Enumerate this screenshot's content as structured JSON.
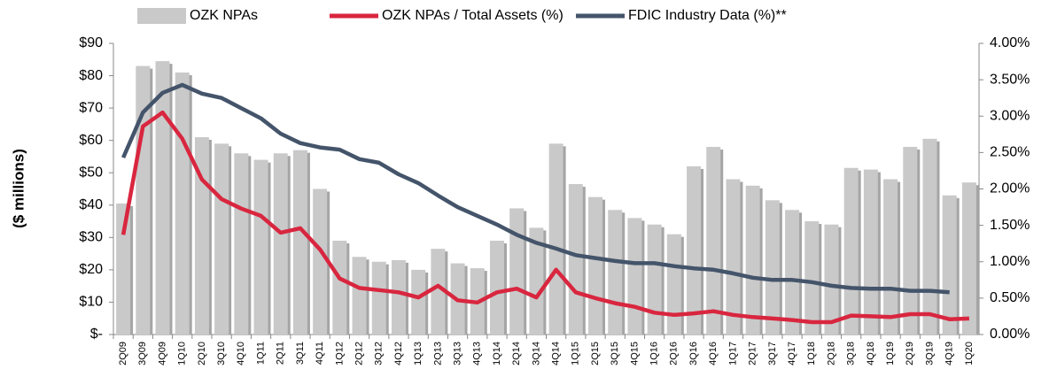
{
  "chart_data": {
    "type": "bar_line_combo",
    "y_label": "($ millions)",
    "categories": [
      "2Q09",
      "3Q09",
      "4Q09",
      "1Q10",
      "2Q10",
      "3Q10",
      "4Q10",
      "1Q11",
      "2Q11",
      "3Q11",
      "4Q11",
      "1Q12",
      "2Q12",
      "3Q12",
      "4Q12",
      "1Q13",
      "2Q13",
      "3Q13",
      "4Q13",
      "1Q14",
      "2Q14",
      "3Q14",
      "4Q14",
      "1Q15",
      "2Q15",
      "3Q15",
      "4Q15",
      "1Q16",
      "2Q16",
      "3Q16",
      "4Q16",
      "1Q17",
      "2Q17",
      "3Q17",
      "4Q17",
      "1Q18",
      "2Q18",
      "3Q18",
      "4Q18",
      "1Q19",
      "2Q19",
      "3Q19",
      "4Q19",
      "1Q20"
    ],
    "series": [
      {
        "name": "OZK NPAs",
        "kind": "bar",
        "color": "#c9c9c9",
        "axis": "y",
        "values": [
          40.5,
          83,
          84.5,
          81,
          61,
          59,
          56,
          54,
          56,
          57,
          45,
          29,
          24,
          22.5,
          23,
          20,
          26.5,
          22,
          20.5,
          29,
          39,
          33,
          59,
          46.5,
          42.5,
          38.5,
          36,
          34,
          31,
          52,
          58,
          48,
          46,
          41.5,
          38.5,
          35,
          34,
          51.5,
          51,
          48,
          58,
          60.5,
          43,
          47
        ]
      },
      {
        "name": "OZK NPAs / Total Assets (%)",
        "kind": "line",
        "color": "#d9263f",
        "axis": "y2",
        "values": [
          1.37,
          2.86,
          3.05,
          2.69,
          2.13,
          1.86,
          1.73,
          1.63,
          1.4,
          1.46,
          1.17,
          0.77,
          0.64,
          0.61,
          0.58,
          0.51,
          0.67,
          0.47,
          0.44,
          0.58,
          0.63,
          0.51,
          0.89,
          0.58,
          0.5,
          0.43,
          0.38,
          0.3,
          0.27,
          0.29,
          0.32,
          0.27,
          0.24,
          0.22,
          0.2,
          0.17,
          0.17,
          0.26,
          0.25,
          0.24,
          0.28,
          0.28,
          0.21,
          0.22
        ]
      },
      {
        "name": "FDIC Industry Data (%)**",
        "kind": "line",
        "color": "#44546a",
        "axis": "y2",
        "values": [
          2.43,
          3.05,
          3.32,
          3.43,
          3.31,
          3.25,
          3.11,
          2.97,
          2.76,
          2.63,
          2.57,
          2.54,
          2.41,
          2.36,
          2.2,
          2.08,
          1.91,
          1.75,
          1.63,
          1.51,
          1.37,
          1.26,
          1.18,
          1.09,
          1.05,
          1.01,
          0.98,
          0.98,
          0.94,
          0.91,
          0.89,
          0.84,
          0.78,
          0.75,
          0.75,
          0.72,
          0.67,
          0.64,
          0.63,
          0.63,
          0.6,
          0.6,
          0.58,
          null
        ]
      }
    ],
    "ylim": [
      0,
      90
    ],
    "yticks": [
      {
        "value": 0,
        "label": "$-"
      },
      {
        "value": 10,
        "label": "$10"
      },
      {
        "value": 20,
        "label": "$20"
      },
      {
        "value": 30,
        "label": "$30"
      },
      {
        "value": 40,
        "label": "$40"
      },
      {
        "value": 50,
        "label": "$50"
      },
      {
        "value": 60,
        "label": "$60"
      },
      {
        "value": 70,
        "label": "$70"
      },
      {
        "value": 80,
        "label": "$80"
      },
      {
        "value": 90,
        "label": "$90"
      }
    ],
    "y2lim": [
      0,
      4
    ],
    "y2ticks": [
      {
        "value": 0,
        "label": "0.00%"
      },
      {
        "value": 0.5,
        "label": "0.50%"
      },
      {
        "value": 1,
        "label": "1.00%"
      },
      {
        "value": 1.5,
        "label": "1.50%"
      },
      {
        "value": 2,
        "label": "2.00%"
      },
      {
        "value": 2.5,
        "label": "2.50%"
      },
      {
        "value": 3,
        "label": "3.00%"
      },
      {
        "value": 3.5,
        "label": "3.50%"
      },
      {
        "value": 4,
        "label": "4.00%"
      }
    ],
    "legend": "top"
  }
}
